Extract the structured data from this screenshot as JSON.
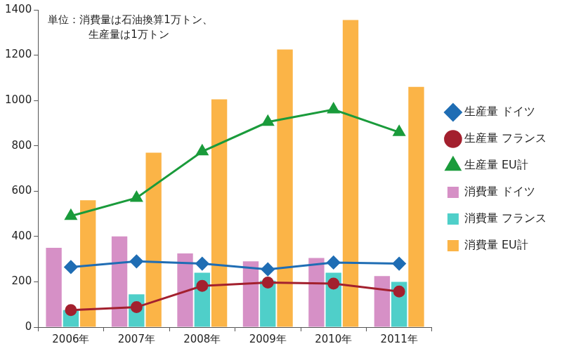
{
  "chart_data": {
    "type": "bar",
    "annotation": [
      "単位：消費量は石油換算1万トン、",
      "生産量は1万トン"
    ],
    "categories": [
      "2006年",
      "2007年",
      "2008年",
      "2009年",
      "2010年",
      "2011年"
    ],
    "series": [
      {
        "name": "消費量 ドイツ",
        "type": "bar",
        "color": "#d690c6",
        "values": [
          350,
          400,
          325,
          290,
          305,
          225
        ]
      },
      {
        "name": "消費量 フランス",
        "type": "bar",
        "color": "#4fcfc9",
        "values": [
          75,
          145,
          240,
          205,
          240,
          200
        ]
      },
      {
        "name": "消費量 EU計",
        "type": "bar",
        "color": "#fbb447",
        "values": [
          560,
          770,
          1005,
          1225,
          1355,
          1060
        ]
      },
      {
        "name": "生産量 ドイツ",
        "type": "line",
        "color": "#1f6db4",
        "marker": "diamond",
        "values": [
          265,
          290,
          280,
          255,
          285,
          280
        ]
      },
      {
        "name": "生産量 フランス",
        "type": "line",
        "color": "#a3202e",
        "marker": "circle",
        "values": [
          75,
          88,
          182,
          197,
          192,
          157
        ]
      },
      {
        "name": "生産量 EU計",
        "type": "line",
        "color": "#1a9b3b",
        "marker": "triangle",
        "values": [
          490,
          570,
          775,
          905,
          960,
          860
        ]
      }
    ],
    "ylim": [
      0,
      1400
    ],
    "yticks": [
      0,
      200,
      400,
      600,
      800,
      1000,
      1200,
      1400
    ],
    "grid": false,
    "legend": "right"
  }
}
